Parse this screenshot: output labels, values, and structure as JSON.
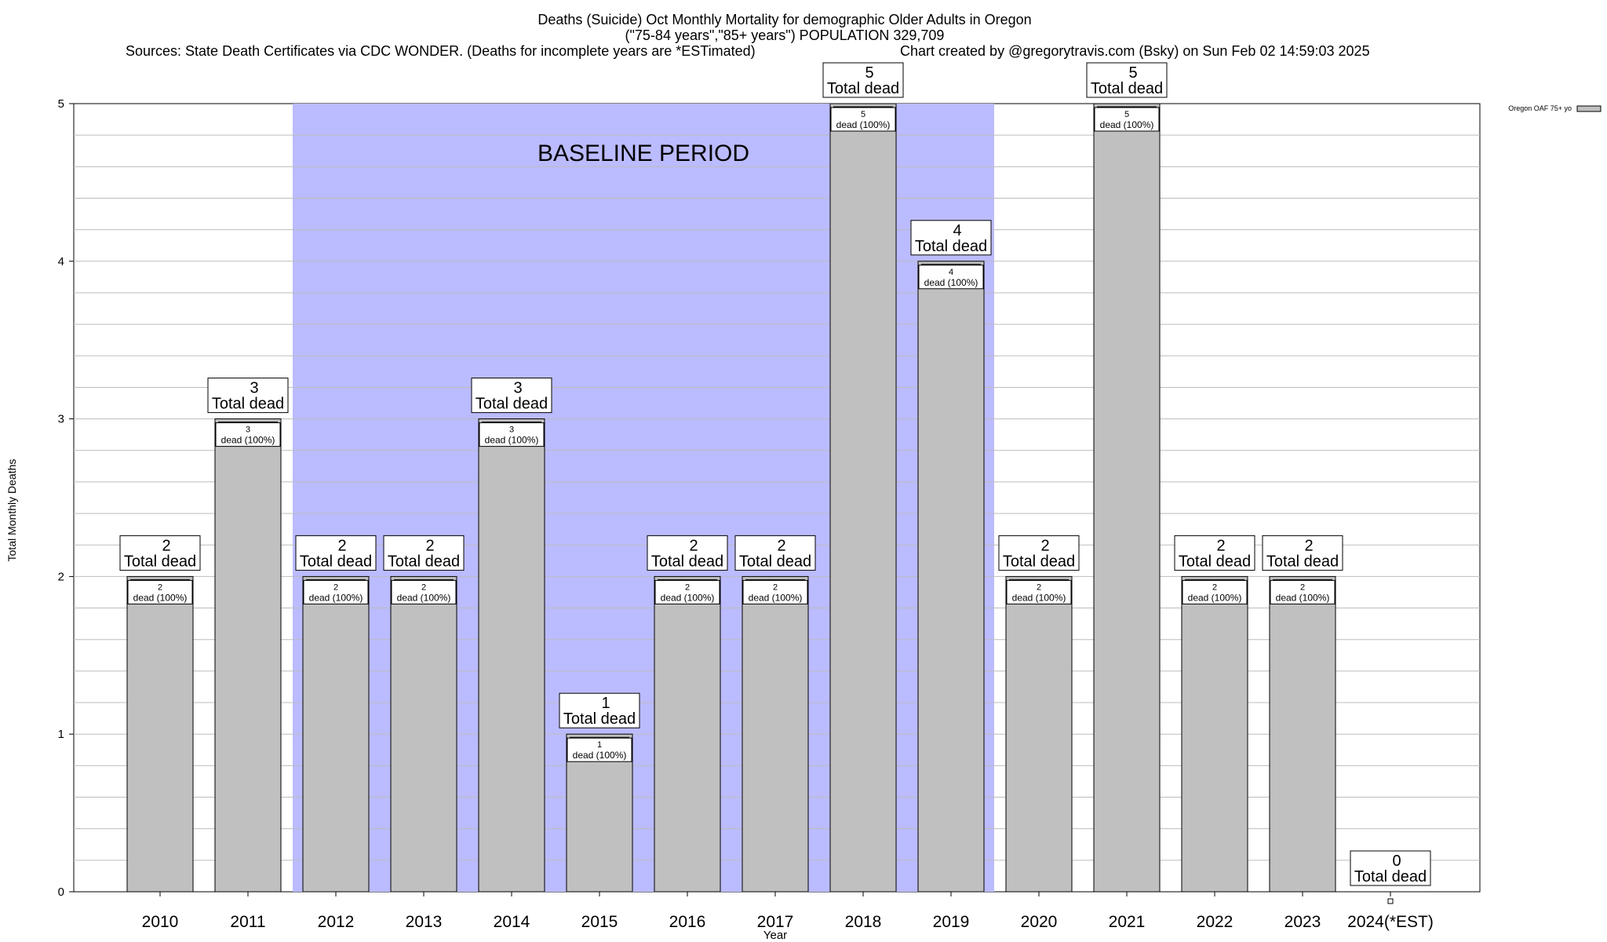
{
  "header": {
    "title_line1": "Deaths (Suicide) Oct Monthly Mortality for demographic Older Adults in Oregon",
    "title_line2": "(\"75-84 years\",\"85+ years\") POPULATION 329,709",
    "sources": "Sources: State Death Certificates via CDC WONDER. (Deaths for incomplete years are *ESTimated)",
    "credit": "Chart created by @gregorytravis.com (Bsky) on Sun Feb 02 14:59:03 2025"
  },
  "chart_data": {
    "type": "bar",
    "categories": [
      "2010",
      "2011",
      "2012",
      "2013",
      "2014",
      "2015",
      "2016",
      "2017",
      "2018",
      "2019",
      "2020",
      "2021",
      "2022",
      "2023",
      "2024(*EST)"
    ],
    "series": [
      {
        "name": "Oregon OAF 75+ yo",
        "values": [
          2,
          3,
          2,
          2,
          3,
          1,
          2,
          2,
          5,
          4,
          2,
          5,
          2,
          2,
          0
        ],
        "color": "#c0c0c0"
      }
    ],
    "xlabel": "Year",
    "ylabel": "Total Monthly Deaths",
    "ylim": [
      0,
      5
    ],
    "yticks": [
      "0",
      "1",
      "2",
      "3",
      "4",
      "5"
    ],
    "grid": true,
    "legend_position": "top-right",
    "top_label_suffix": "Total dead",
    "inner_label_suffix": "dead (100%)",
    "baseline_period": {
      "label": "BASELINE PERIOD",
      "start_category": "2012",
      "end_category": "2019",
      "color": "#bbbbff"
    }
  }
}
